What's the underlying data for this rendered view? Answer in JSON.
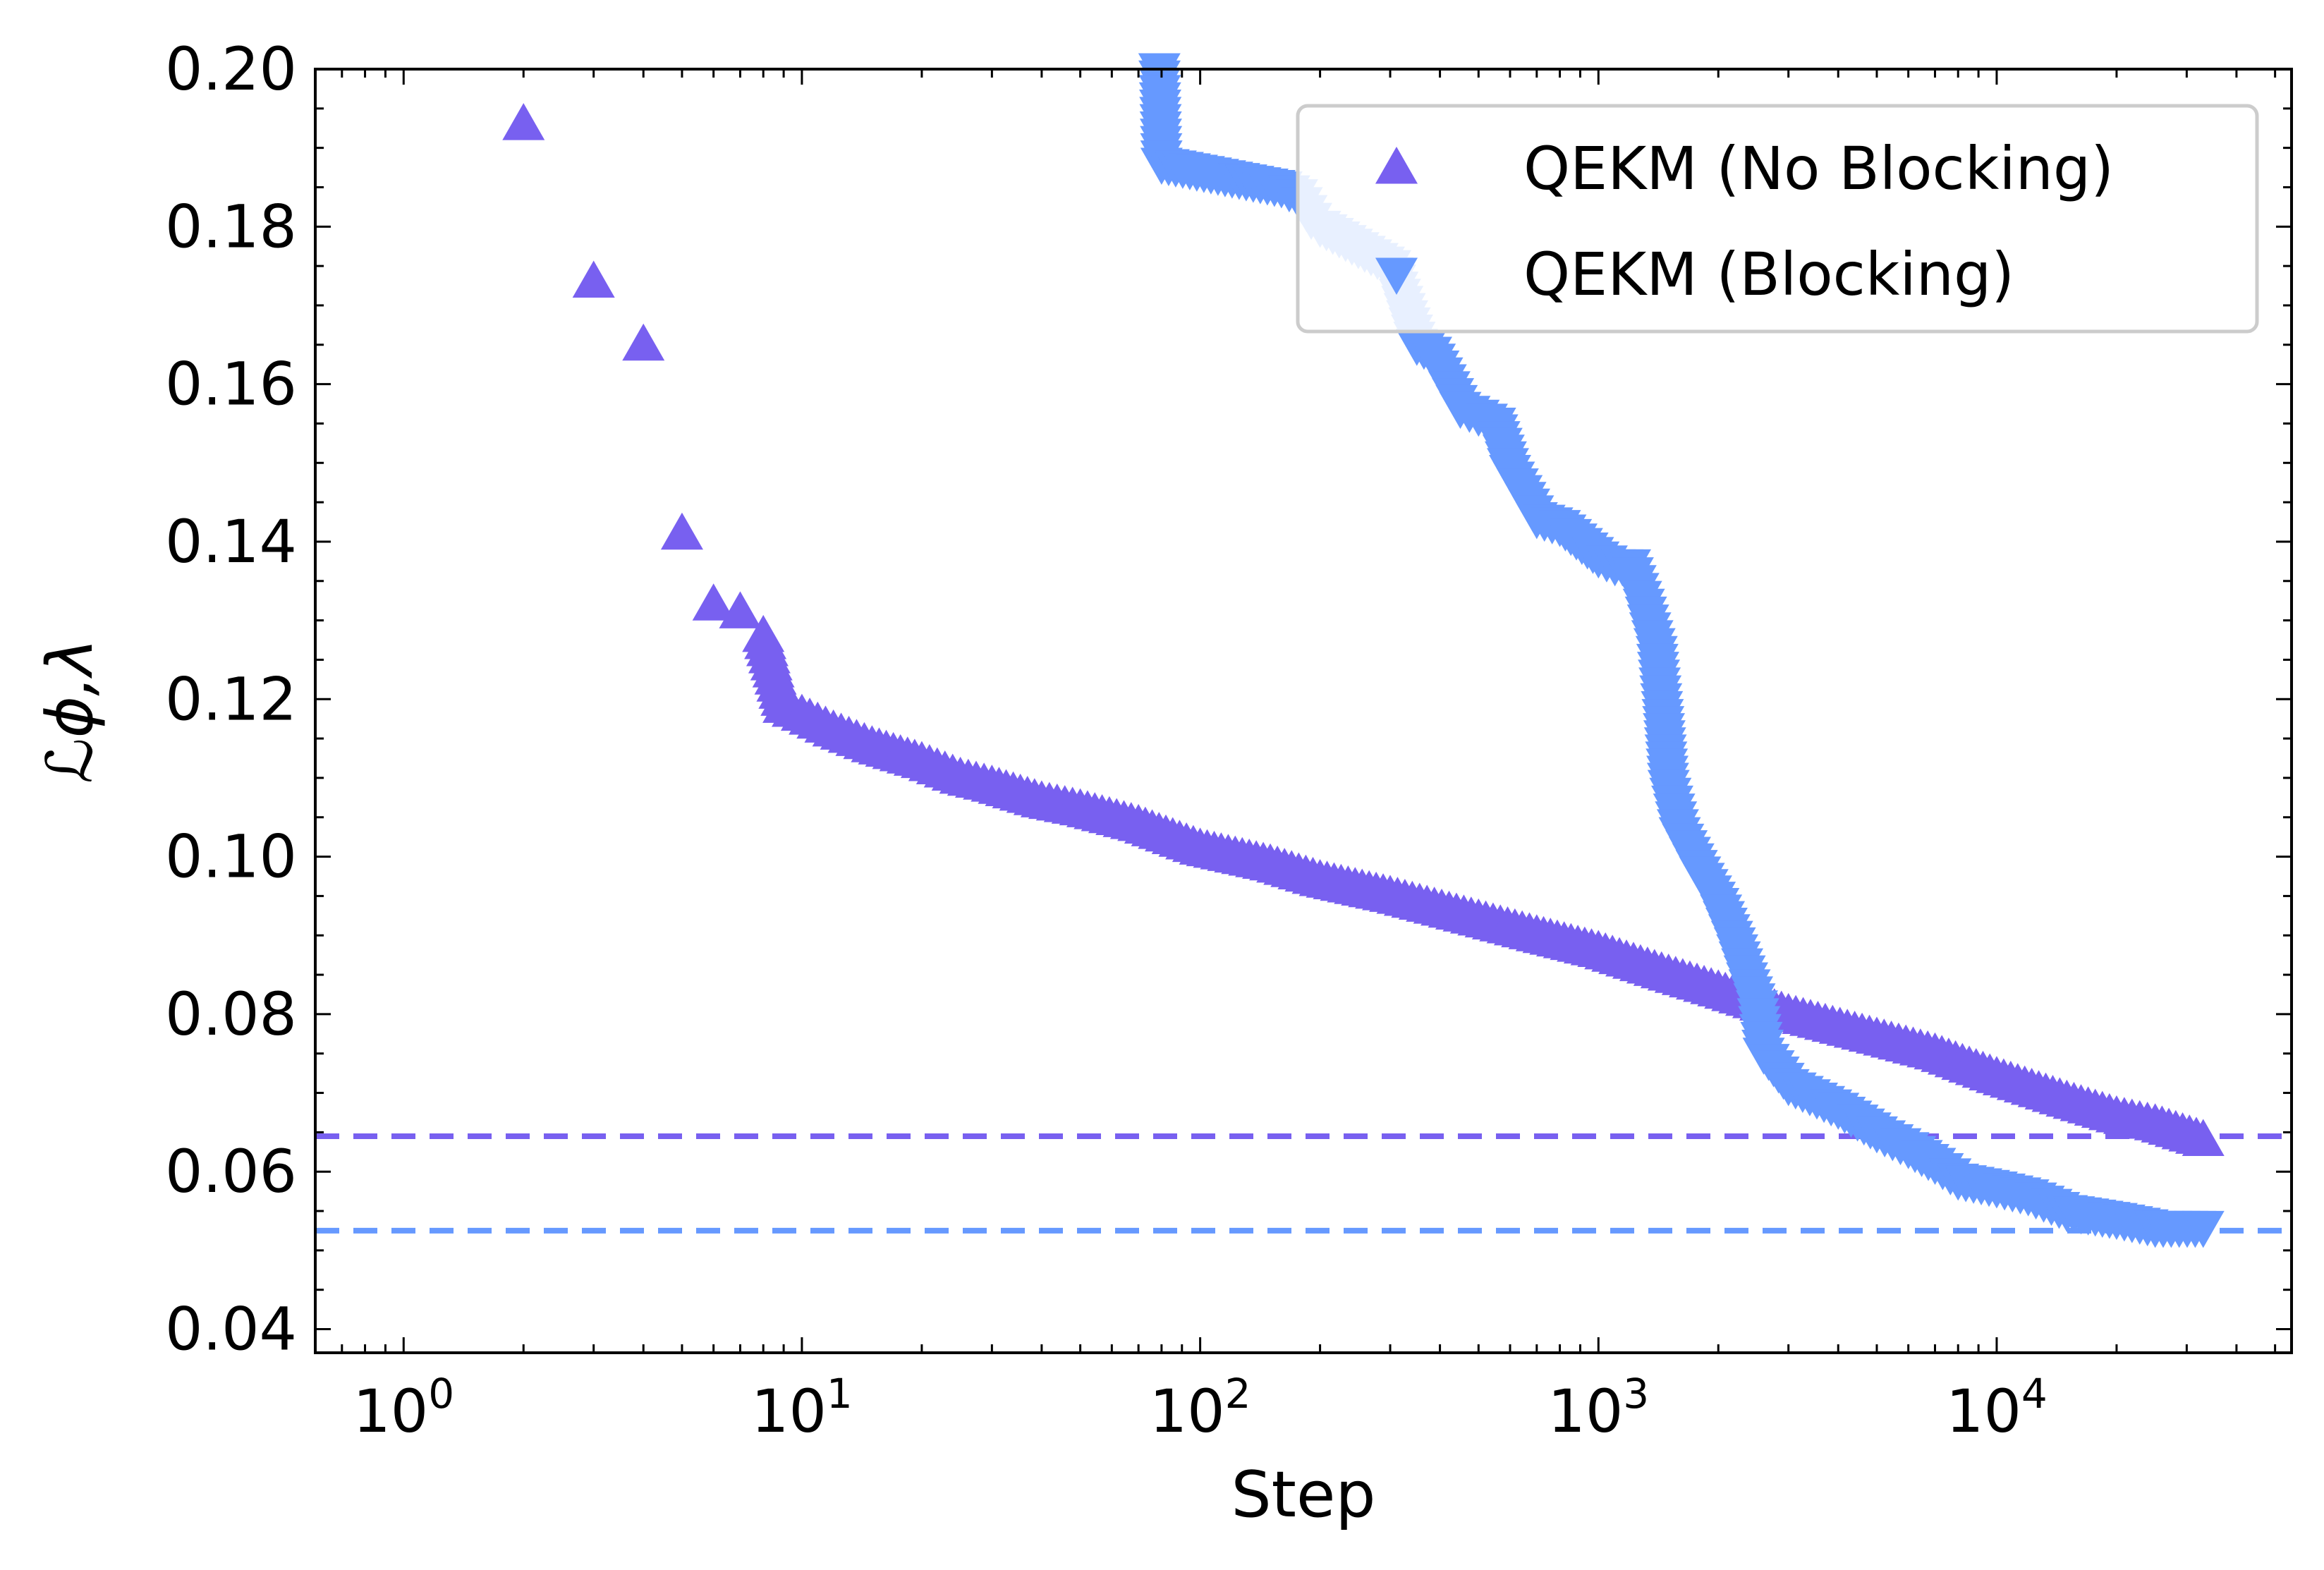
{
  "chart_data": {
    "type": "scatter",
    "xlabel": "Step",
    "ylabel": "ℒϕ,λ",
    "xscale": "log",
    "xlim": [
      0.6,
      55000
    ],
    "ylim": [
      0.037,
      0.2
    ],
    "xticks": [
      {
        "value": 1,
        "base": "10",
        "exp": "0"
      },
      {
        "value": 10,
        "base": "10",
        "exp": "1"
      },
      {
        "value": 100,
        "base": "10",
        "exp": "2"
      },
      {
        "value": 1000,
        "base": "10",
        "exp": "3"
      },
      {
        "value": 10000,
        "base": "10",
        "exp": "4"
      }
    ],
    "yticks": [
      {
        "value": 0.04,
        "label": "0.04"
      },
      {
        "value": 0.06,
        "label": "0.06"
      },
      {
        "value": 0.08,
        "label": "0.08"
      },
      {
        "value": 0.1,
        "label": "0.10"
      },
      {
        "value": 0.12,
        "label": "0.12"
      },
      {
        "value": 0.14,
        "label": "0.14"
      },
      {
        "value": 0.16,
        "label": "0.16"
      },
      {
        "value": 0.18,
        "label": "0.18"
      },
      {
        "value": 0.2,
        "label": "0.20"
      }
    ],
    "legend_position": "top-right",
    "series": [
      {
        "name": "QEKM (No Blocking)",
        "marker": "triangle-up",
        "color": "#7860f0",
        "points": [
          [
            2,
            0.193
          ],
          [
            3,
            0.173
          ],
          [
            4,
            0.165
          ],
          [
            5,
            0.141
          ],
          [
            6,
            0.132
          ],
          [
            7,
            0.131
          ],
          [
            8,
            0.128
          ],
          [
            9,
            0.119
          ],
          [
            10,
            0.118
          ],
          [
            12,
            0.116
          ],
          [
            15,
            0.114
          ],
          [
            20,
            0.112
          ],
          [
            25,
            0.11
          ],
          [
            30,
            0.109
          ],
          [
            40,
            0.107
          ],
          [
            50,
            0.106
          ],
          [
            70,
            0.104
          ],
          [
            100,
            0.101
          ],
          [
            150,
            0.099
          ],
          [
            200,
            0.097
          ],
          [
            300,
            0.095
          ],
          [
            500,
            0.092
          ],
          [
            700,
            0.09
          ],
          [
            1000,
            0.088
          ],
          [
            1500,
            0.085
          ],
          [
            2000,
            0.083
          ],
          [
            3000,
            0.08
          ],
          [
            5000,
            0.077
          ],
          [
            7000,
            0.075
          ],
          [
            10000,
            0.072
          ],
          [
            15000,
            0.069
          ],
          [
            20000,
            0.067
          ],
          [
            25000,
            0.066
          ],
          [
            33000,
            0.064
          ]
        ]
      },
      {
        "name": "QEKM (Blocking)",
        "marker": "triangle-down",
        "color": "#6699ff",
        "points": [
          [
            79,
            0.2
          ],
          [
            80,
            0.188
          ],
          [
            160,
            0.185
          ],
          [
            175,
            0.184
          ],
          [
            190,
            0.181
          ],
          [
            200,
            0.18
          ],
          [
            300,
            0.175
          ],
          [
            350,
            0.165
          ],
          [
            380,
            0.164
          ],
          [
            450,
            0.157
          ],
          [
            500,
            0.156
          ],
          [
            550,
            0.155
          ],
          [
            600,
            0.149
          ],
          [
            700,
            0.143
          ],
          [
            800,
            0.142
          ],
          [
            1000,
            0.138
          ],
          [
            1100,
            0.137
          ],
          [
            1200,
            0.137
          ],
          [
            1300,
            0.132
          ],
          [
            1400,
            0.126
          ],
          [
            1450,
            0.118
          ],
          [
            1500,
            0.109
          ],
          [
            1600,
            0.103
          ],
          [
            1800,
            0.098
          ],
          [
            2000,
            0.094
          ],
          [
            2200,
            0.089
          ],
          [
            2500,
            0.081
          ],
          [
            2600,
            0.075
          ],
          [
            3000,
            0.071
          ],
          [
            4000,
            0.068
          ],
          [
            5000,
            0.065
          ],
          [
            6000,
            0.063
          ],
          [
            7000,
            0.061
          ],
          [
            8000,
            0.059
          ],
          [
            10000,
            0.058
          ],
          [
            12000,
            0.057
          ],
          [
            15000,
            0.055
          ],
          [
            20000,
            0.054
          ],
          [
            25000,
            0.053
          ],
          [
            33000,
            0.053
          ]
        ]
      }
    ],
    "hlines": [
      {
        "y": 0.0645,
        "color": "#7860f0",
        "style": "dashed"
      },
      {
        "y": 0.0525,
        "color": "#6699ff",
        "style": "dashed"
      }
    ]
  }
}
